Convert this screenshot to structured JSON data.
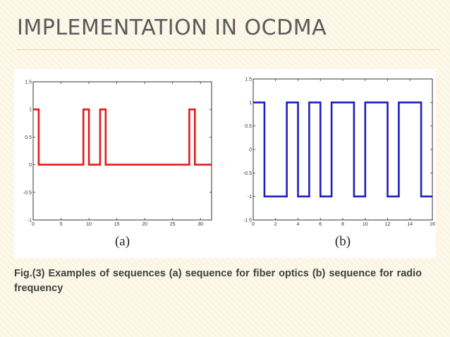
{
  "slide": {
    "title": "IMPLEMENTATION IN OCDMA",
    "accent_color": "#d9b36a",
    "caption": "Fig.(3) Examples of sequences (a) sequence for fiber optics (b) sequence for radio frequency"
  },
  "chart_data": [
    {
      "type": "line",
      "panel_label": "(a)",
      "color": "#e31a1c",
      "xlim": [
        0,
        32
      ],
      "ylim": [
        -1,
        1.5
      ],
      "xticks": [
        0,
        5,
        10,
        15,
        20,
        25,
        30
      ],
      "xtick_labels": [
        "0",
        "5",
        "10",
        "15",
        "20",
        "25",
        "30"
      ],
      "yticks": [
        1.5,
        1,
        0.5,
        0,
        -0.5,
        -1
      ],
      "ytick_labels": [
        "1.5",
        "1",
        "0.5",
        "0",
        "-0.5",
        "-1"
      ],
      "series": [
        {
          "x": [
            0,
            1,
            1,
            9,
            9,
            10,
            10,
            12,
            12,
            13,
            13,
            28,
            28,
            29,
            29,
            32
          ],
          "y": [
            1,
            1,
            0,
            0,
            1,
            1,
            0,
            0,
            1,
            1,
            0,
            0,
            1,
            1,
            0,
            0
          ]
        }
      ]
    },
    {
      "type": "line",
      "panel_label": "(b)",
      "color": "#1f1fbf",
      "xlim": [
        0,
        16
      ],
      "ylim": [
        -1.5,
        1.5
      ],
      "xticks": [
        0,
        2,
        4,
        6,
        8,
        10,
        12,
        14,
        16
      ],
      "xtick_labels": [
        "0",
        "2",
        "4",
        "6",
        "8",
        "10",
        "12",
        "14",
        "16"
      ],
      "yticks": [
        1.5,
        1,
        0.5,
        0,
        -0.5,
        -1,
        -1.5
      ],
      "ytick_labels": [
        "1.5",
        "1",
        "0.5",
        "0",
        "-0.5",
        "-1",
        "-1.5"
      ],
      "series": [
        {
          "x": [
            0,
            1,
            1,
            3,
            3,
            4,
            4,
            5,
            5,
            6,
            6,
            7,
            7,
            9,
            9,
            10,
            10,
            12,
            12,
            13,
            13,
            15,
            15,
            16
          ],
          "y": [
            1,
            1,
            -1,
            -1,
            1,
            1,
            -1,
            -1,
            1,
            1,
            -1,
            -1,
            1,
            1,
            -1,
            -1,
            1,
            1,
            -1,
            -1,
            1,
            1,
            -1,
            -1
          ]
        }
      ]
    }
  ]
}
